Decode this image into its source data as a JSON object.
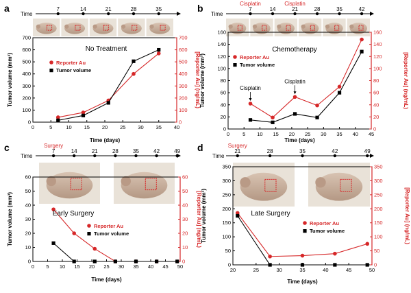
{
  "common": {
    "time_label": "Time",
    "x_axis_label": "Time (days)",
    "y_left_label": "Tumor volume (mm³)",
    "y_right_label": "[Reporter Au] (ng/mL)",
    "legend_reporter": "Reporter Au",
    "legend_tumor": "Tumor volume"
  },
  "colors": {
    "reporter": "#d62728",
    "tumor": "#000000",
    "right_axis": "#d62728"
  },
  "chart_data": [
    {
      "panel": "a",
      "type": "line",
      "title": "No Treatment",
      "xlim": [
        0,
        40
      ],
      "xticks": [
        0,
        5,
        10,
        15,
        20,
        25,
        30,
        35,
        40
      ],
      "ylim_left": [
        0,
        700
      ],
      "yticks_left": [
        0,
        100,
        200,
        300,
        400,
        500,
        600,
        700
      ],
      "ylim_right": [
        0,
        700
      ],
      "yticks_right": [
        0,
        100,
        200,
        300,
        400,
        500,
        600,
        700
      ],
      "timeline_days": [
        7,
        14,
        21,
        28,
        35
      ],
      "timeline_notes": [],
      "photo_count": 5,
      "series": [
        {
          "name": "Reporter Au",
          "axis": "right",
          "marker": "circle",
          "x": [
            7,
            14,
            21,
            28,
            35
          ],
          "y": [
            40,
            80,
            180,
            400,
            570
          ]
        },
        {
          "name": "Tumor volume",
          "axis": "left",
          "marker": "square",
          "x": [
            7,
            14,
            21,
            28,
            35
          ],
          "y": [
            15,
            55,
            160,
            505,
            600
          ]
        }
      ],
      "annotations": []
    },
    {
      "panel": "b",
      "type": "line",
      "title": "Chemotherapy",
      "xlim": [
        0,
        45
      ],
      "xticks": [
        0,
        5,
        10,
        15,
        20,
        25,
        30,
        35,
        40,
        45
      ],
      "ylim_left": [
        0,
        160
      ],
      "yticks_left": [
        0,
        20,
        40,
        60,
        80,
        100,
        120,
        140,
        160
      ],
      "ylim_right": [
        0,
        160
      ],
      "yticks_right": [
        0,
        20,
        40,
        60,
        80,
        100,
        120,
        140,
        160
      ],
      "timeline_days": [
        7,
        14,
        21,
        28,
        35,
        42
      ],
      "timeline_notes": [
        {
          "text": "Cisplatin",
          "day": 7
        },
        {
          "text": "Cisplatin",
          "day": 21
        }
      ],
      "photo_count": 6,
      "series": [
        {
          "name": "Reporter Au",
          "axis": "right",
          "marker": "circle",
          "x": [
            7,
            14,
            21,
            28,
            35,
            42
          ],
          "y": [
            42,
            19,
            53,
            39,
            70,
            148
          ]
        },
        {
          "name": "Tumor volume",
          "axis": "left",
          "marker": "square",
          "x": [
            7,
            14,
            21,
            28,
            35,
            42
          ],
          "y": [
            15,
            11,
            25,
            19,
            60,
            128
          ]
        }
      ],
      "annotations": [
        {
          "text": "Cisplatin",
          "x": 7,
          "y": 42
        },
        {
          "text": "Cisplatin",
          "x": 21,
          "y": 53
        }
      ]
    },
    {
      "panel": "c",
      "type": "line",
      "title": "Early Surgery",
      "xlim": [
        0,
        50
      ],
      "xticks": [
        0,
        5,
        10,
        15,
        20,
        25,
        30,
        35,
        40,
        45,
        50
      ],
      "ylim_left": [
        0,
        60
      ],
      "yticks_left": [
        0,
        10,
        20,
        30,
        40,
        50,
        60
      ],
      "ylim_right": [
        0,
        60
      ],
      "yticks_right": [
        0,
        10,
        20,
        30,
        40,
        50,
        60
      ],
      "timeline_days": [
        7,
        14,
        21,
        28,
        35,
        42,
        49
      ],
      "timeline_notes": [
        {
          "text": "Surgery",
          "day": 7
        }
      ],
      "photo_count": 2,
      "series": [
        {
          "name": "Reporter Au",
          "axis": "right",
          "marker": "circle",
          "x": [
            7,
            14,
            21,
            28,
            35,
            42,
            49
          ],
          "y": [
            37,
            20,
            9,
            0,
            0,
            0,
            0
          ]
        },
        {
          "name": "Tumor volume",
          "axis": "left",
          "marker": "square",
          "x": [
            7,
            14,
            21,
            28,
            35,
            42,
            49
          ],
          "y": [
            13,
            0,
            0,
            0,
            0,
            0,
            0
          ]
        }
      ],
      "annotations": []
    },
    {
      "panel": "d",
      "type": "line",
      "title": "Late Surgery",
      "xlim": [
        20,
        50
      ],
      "xticks": [
        20,
        25,
        30,
        35,
        40,
        45,
        50
      ],
      "ylim_left": [
        0,
        350
      ],
      "yticks_left": [
        0,
        50,
        100,
        150,
        200,
        250,
        300,
        350
      ],
      "ylim_right": [
        0,
        350
      ],
      "yticks_right": [
        0,
        50,
        100,
        150,
        200,
        250,
        300,
        350
      ],
      "timeline_days": [
        21,
        28,
        35,
        42,
        49
      ],
      "timeline_notes": [
        {
          "text": "Surgery",
          "day": 21
        }
      ],
      "photo_count": 2,
      "series": [
        {
          "name": "Reporter Au",
          "axis": "right",
          "marker": "circle",
          "x": [
            21,
            28,
            35,
            42,
            49
          ],
          "y": [
            185,
            30,
            33,
            40,
            75
          ]
        },
        {
          "name": "Tumor volume",
          "axis": "left",
          "marker": "square",
          "x": [
            21,
            28,
            35,
            42,
            49
          ],
          "y": [
            175,
            0,
            0,
            0,
            0
          ]
        }
      ],
      "annotations": []
    }
  ]
}
